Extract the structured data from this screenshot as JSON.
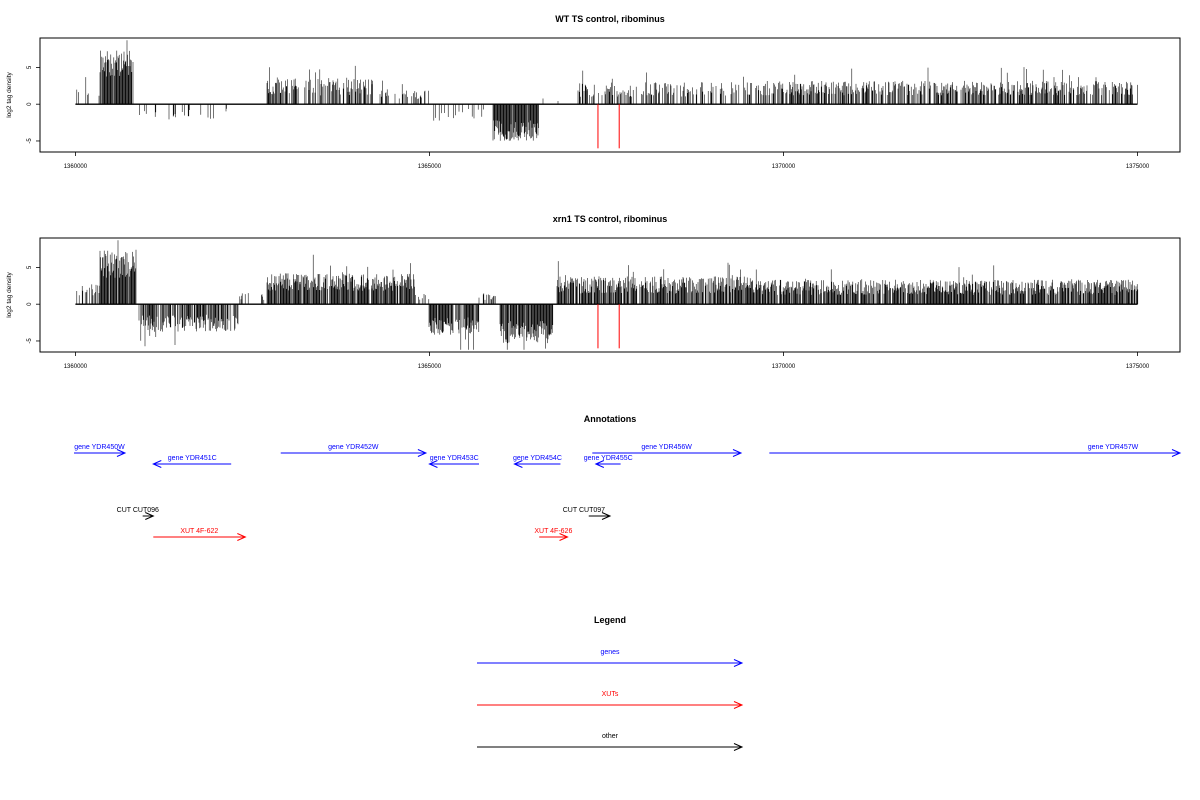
{
  "chart_data": [
    {
      "type": "bar",
      "title": "WT TS control, ribominus",
      "ylabel": "log2 tag density",
      "xlim": [
        1359500,
        1375600
      ],
      "ylim": [
        -6.5,
        9
      ],
      "x_ticks": [
        "1360000",
        "1365000",
        "1370000",
        "1375000"
      ],
      "y_ticks": [
        "-5",
        "0",
        "5"
      ],
      "grid": false,
      "segments": [
        {
          "from": 1360000,
          "to": 1360350,
          "sign": 1,
          "amp": 1.8,
          "density": 0.12,
          "noise": 0.4
        },
        {
          "from": 1360350,
          "to": 1360820,
          "sign": 1,
          "amp": 5.5,
          "density": 0.95,
          "noise": 0.35
        },
        {
          "from": 1360900,
          "to": 1362200,
          "sign": -1,
          "amp": 1.3,
          "density": 0.12,
          "noise": 0.6
        },
        {
          "from": 1362700,
          "to": 1364200,
          "sign": 1,
          "amp": 2.4,
          "density": 0.55,
          "noise": 0.5
        },
        {
          "from": 1364300,
          "to": 1365000,
          "sign": 1,
          "amp": 1.4,
          "density": 0.25,
          "noise": 0.5
        },
        {
          "from": 1365000,
          "to": 1365800,
          "sign": -1,
          "amp": 1.4,
          "density": 0.18,
          "noise": 0.6
        },
        {
          "from": 1365900,
          "to": 1366550,
          "sign": -1,
          "amp": 3.6,
          "density": 0.95,
          "noise": 0.4
        },
        {
          "from": 1366600,
          "to": 1366900,
          "sign": 1,
          "amp": 0.6,
          "density": 0.1,
          "noise": 0.5
        },
        {
          "from": 1367100,
          "to": 1369500,
          "sign": 1,
          "amp": 2.0,
          "density": 0.5,
          "noise": 0.5
        },
        {
          "from": 1369500,
          "to": 1375000,
          "sign": 1,
          "amp": 2.2,
          "density": 0.6,
          "noise": 0.45
        }
      ],
      "highlights": [
        {
          "x": 1367380,
          "y0": 0,
          "y1": -6,
          "color": "#ff0000"
        },
        {
          "x": 1367680,
          "y0": 0,
          "y1": -6,
          "color": "#ff0000"
        }
      ]
    },
    {
      "type": "bar",
      "title": "xrn1 TS control, ribominus",
      "ylabel": "log2 tag density",
      "xlim": [
        1359500,
        1375600
      ],
      "ylim": [
        -6.5,
        9
      ],
      "x_ticks": [
        "1360000",
        "1365000",
        "1370000",
        "1375000"
      ],
      "y_ticks": [
        "-5",
        "0",
        "5"
      ],
      "grid": false,
      "segments": [
        {
          "from": 1360000,
          "to": 1360350,
          "sign": 1,
          "amp": 2.0,
          "density": 0.35,
          "noise": 0.4
        },
        {
          "from": 1360350,
          "to": 1360850,
          "sign": 1,
          "amp": 5.5,
          "density": 0.95,
          "noise": 0.35
        },
        {
          "from": 1360900,
          "to": 1362300,
          "sign": -1,
          "amp": 2.6,
          "density": 0.7,
          "noise": 0.45
        },
        {
          "from": 1362300,
          "to": 1362700,
          "sign": 1,
          "amp": 1.0,
          "density": 0.15,
          "noise": 0.5
        },
        {
          "from": 1362700,
          "to": 1364800,
          "sign": 1,
          "amp": 3.0,
          "density": 0.85,
          "noise": 0.4
        },
        {
          "from": 1364800,
          "to": 1365000,
          "sign": 1,
          "amp": 1.2,
          "density": 0.3,
          "noise": 0.5
        },
        {
          "from": 1365000,
          "to": 1365700,
          "sign": -1,
          "amp": 3.0,
          "density": 0.85,
          "noise": 0.4
        },
        {
          "from": 1365700,
          "to": 1366000,
          "sign": 1,
          "amp": 1.0,
          "density": 0.3,
          "noise": 0.5
        },
        {
          "from": 1366000,
          "to": 1366750,
          "sign": -1,
          "amp": 3.8,
          "density": 0.95,
          "noise": 0.4
        },
        {
          "from": 1366800,
          "to": 1369600,
          "sign": 1,
          "amp": 2.6,
          "density": 0.85,
          "noise": 0.45
        },
        {
          "from": 1369600,
          "to": 1375000,
          "sign": 1,
          "amp": 2.3,
          "density": 0.85,
          "noise": 0.45
        }
      ],
      "highlights": [
        {
          "x": 1367380,
          "y0": 0,
          "y1": -6,
          "color": "#ff0000"
        },
        {
          "x": 1367680,
          "y0": 0,
          "y1": -6,
          "color": "#ff0000"
        }
      ]
    }
  ],
  "annotations": {
    "title": "Annotations",
    "features": [
      {
        "label": "gene YDR450W",
        "start": 1359900,
        "end": 1360700,
        "strand": "+",
        "type": "gene",
        "row": 0
      },
      {
        "label": "gene YDR451C",
        "start": 1361100,
        "end": 1362200,
        "strand": "-",
        "type": "gene",
        "row": 1
      },
      {
        "label": "gene YDR452W",
        "start": 1362900,
        "end": 1364950,
        "strand": "+",
        "type": "gene",
        "row": 0
      },
      {
        "label": "gene YDR453C",
        "start": 1365000,
        "end": 1365700,
        "strand": "-",
        "type": "gene",
        "row": 1
      },
      {
        "label": "gene YDR454C",
        "start": 1366200,
        "end": 1366850,
        "strand": "-",
        "type": "gene",
        "row": 1
      },
      {
        "label": "gene YDR456W",
        "start": 1367300,
        "end": 1369400,
        "strand": "+",
        "type": "gene",
        "row": 0
      },
      {
        "label": "gene YDR455C",
        "start": 1367350,
        "end": 1367700,
        "strand": "-",
        "type": "gene",
        "row": 1
      },
      {
        "label": "gene YDR457W",
        "start": 1369800,
        "end": 1375600,
        "strand": "+",
        "type": "gene",
        "row": 0
      },
      {
        "label": "CUT CUT096",
        "start": 1360950,
        "end": 1361100,
        "strand": "+",
        "type": "other",
        "row": 4
      },
      {
        "label": "XUT 4F-622",
        "start": 1361100,
        "end": 1362400,
        "strand": "+",
        "type": "xut",
        "row": 5
      },
      {
        "label": "CUT CUT097",
        "start": 1367250,
        "end": 1367550,
        "strand": "+",
        "type": "other",
        "row": 4
      },
      {
        "label": "XUT 4F-626",
        "start": 1366550,
        "end": 1366950,
        "strand": "+",
        "type": "xut",
        "row": 5
      }
    ]
  },
  "legend": {
    "title": "Legend",
    "items": [
      {
        "label": "genes",
        "color": "#0000ff"
      },
      {
        "label": "XUTs",
        "color": "#ff0000"
      },
      {
        "label": "other",
        "color": "#000000"
      }
    ]
  },
  "colors": {
    "gene": "#0000ff",
    "xut": "#ff0000",
    "other": "#000000",
    "axis": "#000000"
  }
}
